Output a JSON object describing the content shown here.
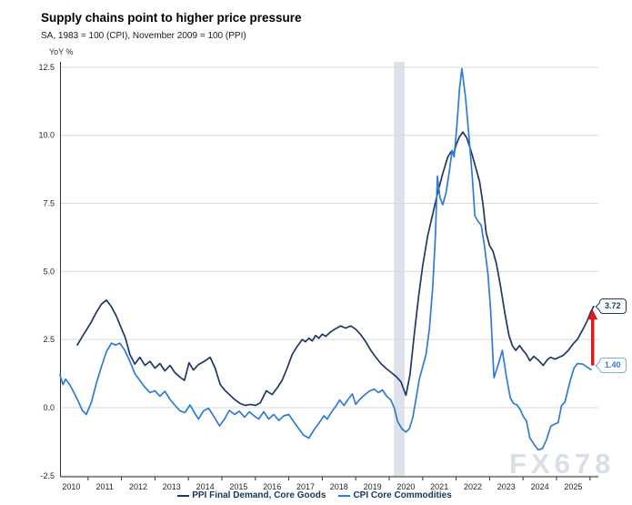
{
  "header": {
    "title": "Supply chains point to higher price pressure",
    "subtitle": "SA, 1983 = 100 (CPI), November 2009 = 100 (PPI)"
  },
  "watermark": "FX678",
  "chart_data": {
    "type": "line",
    "title": "Supply chains point to higher price pressure",
    "subtitle": "SA, 1983 = 100 (CPI), November 2009 = 100 (PPI)",
    "ylabel": "YoY %",
    "grid": true,
    "grid_color": "#d9d9d9",
    "axis_color": "#333333",
    "y_axis": {
      "ticks": [
        12.5,
        10.0,
        7.5,
        5.0,
        2.5,
        0.0,
        -2.5
      ],
      "range": [
        -2.5,
        12.5
      ]
    },
    "x_axis": {
      "tick_labels": [
        "2010",
        "2011",
        "2012",
        "2013",
        "2014",
        "2015",
        "2016",
        "2017",
        "2018",
        "2019",
        "2020",
        "2021",
        "2022",
        "2023",
        "2024",
        "2025"
      ],
      "range": [
        2010.16,
        2026.25
      ]
    },
    "recession_band": {
      "from": 2020.14,
      "to": 2020.46,
      "color": "#dde1ea"
    },
    "annotations": {
      "arrow": {
        "x": 2026.08,
        "from_value": 1.55,
        "to_value": 3.3,
        "color": "#e01b1b"
      }
    },
    "legend_position": "bottom",
    "series": [
      {
        "name": "PPI Final Demand, Core Goods",
        "color": "#1f3864",
        "end_label": "3.72",
        "points": [
          [
            2010.68,
            2.3
          ],
          [
            2010.8,
            2.55
          ],
          [
            2010.95,
            2.85
          ],
          [
            2011.1,
            3.15
          ],
          [
            2011.25,
            3.5
          ],
          [
            2011.4,
            3.8
          ],
          [
            2011.55,
            3.95
          ],
          [
            2011.7,
            3.7
          ],
          [
            2011.85,
            3.35
          ],
          [
            2012.0,
            2.9
          ],
          [
            2012.12,
            2.55
          ],
          [
            2012.25,
            1.95
          ],
          [
            2012.4,
            1.6
          ],
          [
            2012.55,
            1.85
          ],
          [
            2012.7,
            1.55
          ],
          [
            2012.85,
            1.7
          ],
          [
            2013.0,
            1.45
          ],
          [
            2013.15,
            1.62
          ],
          [
            2013.3,
            1.35
          ],
          [
            2013.45,
            1.55
          ],
          [
            2013.6,
            1.28
          ],
          [
            2013.75,
            1.12
          ],
          [
            2013.88,
            1.0
          ],
          [
            2014.02,
            1.65
          ],
          [
            2014.15,
            1.38
          ],
          [
            2014.3,
            1.58
          ],
          [
            2014.5,
            1.72
          ],
          [
            2014.65,
            1.85
          ],
          [
            2014.8,
            1.45
          ],
          [
            2014.95,
            0.85
          ],
          [
            2015.1,
            0.62
          ],
          [
            2015.25,
            0.45
          ],
          [
            2015.4,
            0.28
          ],
          [
            2015.55,
            0.15
          ],
          [
            2015.7,
            0.08
          ],
          [
            2015.85,
            0.12
          ],
          [
            2016.0,
            0.08
          ],
          [
            2016.15,
            0.18
          ],
          [
            2016.33,
            0.62
          ],
          [
            2016.5,
            0.48
          ],
          [
            2016.65,
            0.72
          ],
          [
            2016.8,
            1.0
          ],
          [
            2016.95,
            1.45
          ],
          [
            2017.1,
            1.95
          ],
          [
            2017.25,
            2.25
          ],
          [
            2017.4,
            2.5
          ],
          [
            2017.5,
            2.42
          ],
          [
            2017.6,
            2.55
          ],
          [
            2017.7,
            2.45
          ],
          [
            2017.8,
            2.65
          ],
          [
            2017.9,
            2.55
          ],
          [
            2018.0,
            2.7
          ],
          [
            2018.1,
            2.62
          ],
          [
            2018.25,
            2.78
          ],
          [
            2018.4,
            2.9
          ],
          [
            2018.55,
            3.0
          ],
          [
            2018.7,
            2.92
          ],
          [
            2018.85,
            3.0
          ],
          [
            2019.0,
            2.88
          ],
          [
            2019.15,
            2.68
          ],
          [
            2019.3,
            2.42
          ],
          [
            2019.45,
            2.1
          ],
          [
            2019.6,
            1.85
          ],
          [
            2019.75,
            1.62
          ],
          [
            2019.9,
            1.45
          ],
          [
            2020.05,
            1.3
          ],
          [
            2020.2,
            1.15
          ],
          [
            2020.35,
            0.95
          ],
          [
            2020.5,
            0.45
          ],
          [
            2020.62,
            1.2
          ],
          [
            2020.75,
            2.7
          ],
          [
            2020.88,
            4.1
          ],
          [
            2021.0,
            5.2
          ],
          [
            2021.15,
            6.3
          ],
          [
            2021.3,
            7.1
          ],
          [
            2021.45,
            7.9
          ],
          [
            2021.6,
            8.6
          ],
          [
            2021.75,
            9.2
          ],
          [
            2021.85,
            9.4
          ],
          [
            2021.92,
            9.3
          ],
          [
            2022.0,
            9.65
          ],
          [
            2022.1,
            9.95
          ],
          [
            2022.2,
            10.12
          ],
          [
            2022.32,
            9.9
          ],
          [
            2022.45,
            9.4
          ],
          [
            2022.6,
            8.75
          ],
          [
            2022.7,
            8.3
          ],
          [
            2022.8,
            7.5
          ],
          [
            2022.9,
            6.4
          ],
          [
            2023.0,
            5.95
          ],
          [
            2023.1,
            5.75
          ],
          [
            2023.2,
            5.3
          ],
          [
            2023.32,
            4.5
          ],
          [
            2023.45,
            3.5
          ],
          [
            2023.58,
            2.65
          ],
          [
            2023.68,
            2.28
          ],
          [
            2023.78,
            2.1
          ],
          [
            2023.9,
            2.28
          ],
          [
            2024.0,
            2.1
          ],
          [
            2024.1,
            1.95
          ],
          [
            2024.2,
            1.72
          ],
          [
            2024.32,
            1.88
          ],
          [
            2024.45,
            1.75
          ],
          [
            2024.6,
            1.55
          ],
          [
            2024.72,
            1.75
          ],
          [
            2024.82,
            1.85
          ],
          [
            2024.95,
            1.78
          ],
          [
            2025.08,
            1.85
          ],
          [
            2025.2,
            1.92
          ],
          [
            2025.35,
            2.1
          ],
          [
            2025.5,
            2.35
          ],
          [
            2025.62,
            2.5
          ],
          [
            2025.72,
            2.72
          ],
          [
            2025.82,
            2.95
          ],
          [
            2025.92,
            3.2
          ],
          [
            2026.02,
            3.5
          ],
          [
            2026.11,
            3.72
          ]
        ]
      },
      {
        "name": "CPI Core Commodities",
        "color": "#2e7cd6",
        "end_label": "1.40",
        "points": [
          [
            2010.16,
            1.2
          ],
          [
            2010.25,
            0.85
          ],
          [
            2010.33,
            1.05
          ],
          [
            2010.45,
            0.85
          ],
          [
            2010.56,
            0.6
          ],
          [
            2010.7,
            0.25
          ],
          [
            2010.83,
            -0.1
          ],
          [
            2010.95,
            -0.25
          ],
          [
            2011.1,
            0.2
          ],
          [
            2011.25,
            0.9
          ],
          [
            2011.4,
            1.5
          ],
          [
            2011.55,
            2.05
          ],
          [
            2011.7,
            2.37
          ],
          [
            2011.82,
            2.3
          ],
          [
            2011.95,
            2.37
          ],
          [
            2012.1,
            2.1
          ],
          [
            2012.25,
            1.7
          ],
          [
            2012.4,
            1.25
          ],
          [
            2012.55,
            1.0
          ],
          [
            2012.7,
            0.75
          ],
          [
            2012.85,
            0.55
          ],
          [
            2013.0,
            0.62
          ],
          [
            2013.15,
            0.42
          ],
          [
            2013.3,
            0.6
          ],
          [
            2013.45,
            0.3
          ],
          [
            2013.6,
            0.08
          ],
          [
            2013.75,
            -0.12
          ],
          [
            2013.9,
            -0.18
          ],
          [
            2014.05,
            0.1
          ],
          [
            2014.18,
            -0.18
          ],
          [
            2014.3,
            -0.42
          ],
          [
            2014.45,
            -0.12
          ],
          [
            2014.6,
            -0.02
          ],
          [
            2014.75,
            -0.3
          ],
          [
            2014.93,
            -0.67
          ],
          [
            2015.08,
            -0.42
          ],
          [
            2015.22,
            -0.1
          ],
          [
            2015.38,
            -0.25
          ],
          [
            2015.52,
            -0.13
          ],
          [
            2015.68,
            -0.35
          ],
          [
            2015.82,
            -0.15
          ],
          [
            2015.98,
            -0.32
          ],
          [
            2016.1,
            -0.42
          ],
          [
            2016.25,
            -0.15
          ],
          [
            2016.4,
            -0.42
          ],
          [
            2016.55,
            -0.25
          ],
          [
            2016.7,
            -0.47
          ],
          [
            2016.85,
            -0.3
          ],
          [
            2017.0,
            -0.25
          ],
          [
            2017.15,
            -0.52
          ],
          [
            2017.3,
            -0.78
          ],
          [
            2017.45,
            -1.02
          ],
          [
            2017.6,
            -1.12
          ],
          [
            2017.75,
            -0.82
          ],
          [
            2017.9,
            -0.57
          ],
          [
            2018.05,
            -0.3
          ],
          [
            2018.15,
            -0.42
          ],
          [
            2018.3,
            -0.12
          ],
          [
            2018.42,
            0.08
          ],
          [
            2018.52,
            0.28
          ],
          [
            2018.65,
            0.08
          ],
          [
            2018.78,
            0.32
          ],
          [
            2018.9,
            0.5
          ],
          [
            2019.0,
            0.12
          ],
          [
            2019.12,
            0.3
          ],
          [
            2019.25,
            0.45
          ],
          [
            2019.4,
            0.6
          ],
          [
            2019.55,
            0.68
          ],
          [
            2019.68,
            0.55
          ],
          [
            2019.8,
            0.65
          ],
          [
            2019.92,
            0.42
          ],
          [
            2020.05,
            0.28
          ],
          [
            2020.15,
            0.0
          ],
          [
            2020.25,
            -0.5
          ],
          [
            2020.38,
            -0.78
          ],
          [
            2020.5,
            -0.9
          ],
          [
            2020.6,
            -0.78
          ],
          [
            2020.7,
            -0.38
          ],
          [
            2020.8,
            0.3
          ],
          [
            2020.9,
            1.05
          ],
          [
            2021.0,
            1.5
          ],
          [
            2021.1,
            1.95
          ],
          [
            2021.2,
            2.9
          ],
          [
            2021.3,
            4.4
          ],
          [
            2021.38,
            6.3
          ],
          [
            2021.44,
            8.5
          ],
          [
            2021.52,
            7.7
          ],
          [
            2021.6,
            7.45
          ],
          [
            2021.7,
            7.9
          ],
          [
            2021.8,
            8.7
          ],
          [
            2021.88,
            9.45
          ],
          [
            2021.94,
            9.2
          ],
          [
            2022.02,
            10.3
          ],
          [
            2022.1,
            11.7
          ],
          [
            2022.17,
            12.45
          ],
          [
            2022.28,
            11.4
          ],
          [
            2022.38,
            10.0
          ],
          [
            2022.48,
            8.5
          ],
          [
            2022.56,
            7.05
          ],
          [
            2022.65,
            6.85
          ],
          [
            2022.75,
            6.7
          ],
          [
            2022.85,
            5.9
          ],
          [
            2022.95,
            4.9
          ],
          [
            2023.03,
            3.6
          ],
          [
            2023.13,
            1.1
          ],
          [
            2023.25,
            1.55
          ],
          [
            2023.38,
            2.1
          ],
          [
            2023.5,
            1.15
          ],
          [
            2023.62,
            0.35
          ],
          [
            2023.72,
            0.15
          ],
          [
            2023.82,
            0.1
          ],
          [
            2023.92,
            -0.08
          ],
          [
            2024.02,
            -0.35
          ],
          [
            2024.1,
            -0.48
          ],
          [
            2024.2,
            -1.1
          ],
          [
            2024.33,
            -1.35
          ],
          [
            2024.45,
            -1.55
          ],
          [
            2024.58,
            -1.5
          ],
          [
            2024.7,
            -1.18
          ],
          [
            2024.83,
            -0.68
          ],
          [
            2024.95,
            -0.6
          ],
          [
            2025.05,
            -0.55
          ],
          [
            2025.15,
            0.08
          ],
          [
            2025.25,
            0.2
          ],
          [
            2025.4,
            0.95
          ],
          [
            2025.52,
            1.45
          ],
          [
            2025.63,
            1.62
          ],
          [
            2025.78,
            1.6
          ],
          [
            2025.9,
            1.5
          ],
          [
            2026.03,
            1.4
          ]
        ]
      }
    ]
  }
}
